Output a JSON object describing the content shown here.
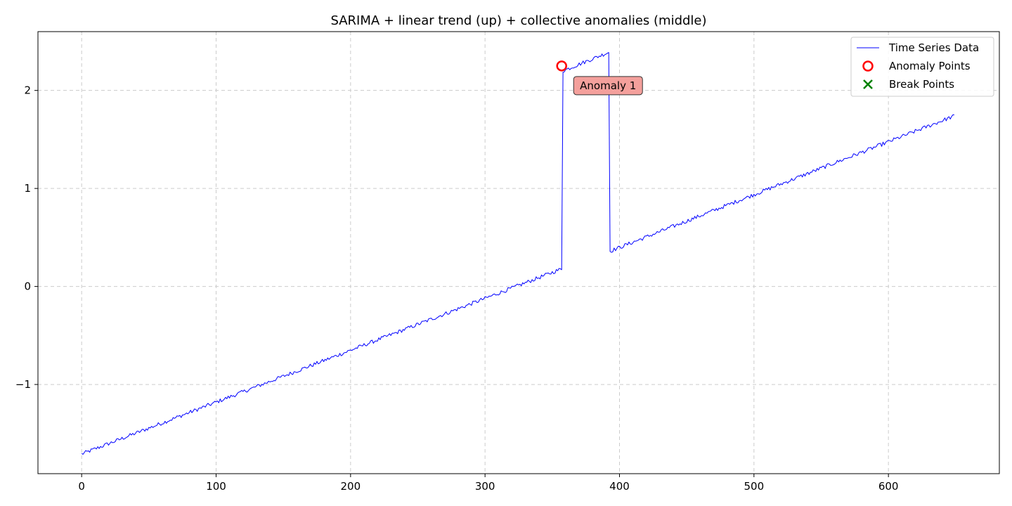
{
  "chart_data": {
    "type": "line",
    "title": "SARIMA + linear trend (up) + collective anomalies (middle)",
    "xlabel": "",
    "ylabel": "",
    "xlim": [
      -32.5,
      682.5
    ],
    "ylim": [
      -1.91,
      2.6
    ],
    "xticks": [
      0,
      100,
      200,
      300,
      400,
      500,
      600
    ],
    "yticks": [
      -1,
      0,
      1,
      2
    ],
    "ytick_labels": [
      "−1",
      "0",
      "1",
      "2"
    ],
    "grid": true,
    "legend_position": "top-right",
    "series": [
      {
        "name": "Time Series Data",
        "color": "#0000ff",
        "segments": [
          {
            "x_start": 0,
            "x_end": 357,
            "y_start": -1.71,
            "y_end": 0.18
          },
          {
            "x_start": 358,
            "x_end": 392,
            "y_start": 2.2,
            "y_end": 2.39
          },
          {
            "x_start": 393,
            "x_end": 649,
            "y_start": 0.36,
            "y_end": 1.74
          }
        ],
        "noise_amplitude": 0.02
      }
    ],
    "anomaly_points": {
      "name": "Anomaly Points",
      "color": "#ff0000",
      "points": [
        {
          "x": 357,
          "y": 2.25
        }
      ]
    },
    "break_points": {
      "name": "Break Points",
      "color": "#008000",
      "points": []
    },
    "annotations": [
      {
        "text": "Anomaly 1",
        "x": 357,
        "y": 2.25,
        "bg": "#f4a09c"
      }
    ]
  }
}
